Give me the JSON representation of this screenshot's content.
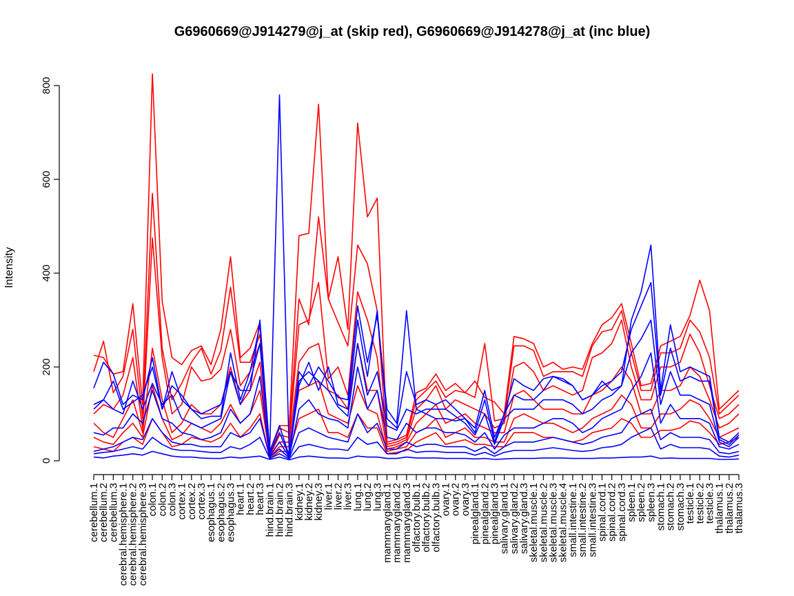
{
  "chart_data": {
    "type": "line",
    "title": "G6960669@J914279@j_at (skip red), G6960669@J914278@j_at (inc blue)",
    "ylabel": "Intensity",
    "ylim": [
      0,
      800
    ],
    "yticks": [
      0,
      200,
      400,
      600,
      800
    ],
    "grid": false,
    "legend": "none",
    "colors": {
      "skip": "#ff0000",
      "inc": "#0000ff"
    },
    "categories": [
      "cerebellum.1",
      "cerebellum.2",
      "cerebellum.3",
      "cerebral.hemisphere.1",
      "cerebral.hemisphere.2",
      "cerebral.hemisphere.3",
      "colon.1",
      "colon.2",
      "colon.3",
      "cortex.1",
      "cortex.2",
      "cortex.3",
      "esophagus.1",
      "esophagus.2",
      "esophagus.3",
      "heart.1",
      "heart.2",
      "heart.3",
      "hind.brain.1",
      "hind.brain.2",
      "hind.brain.3",
      "kidney.1",
      "kidney.2",
      "kidney.3",
      "liver.1",
      "liver.2",
      "liver.3",
      "lung.1",
      "lung.2",
      "lung.3",
      "mammarygland.1",
      "mammarygland.2",
      "mammarygland.3",
      "olfactory.bulb.1",
      "olfactory.bulb.2",
      "olfactory.bulb.3",
      "ovary.1",
      "ovary.2",
      "ovary.3",
      "pinealgland.1",
      "pinealgland.2",
      "pinealgland.3",
      "salivary.gland.1",
      "salivary.gland.2",
      "salivary.gland.3",
      "skeletal.muscle.1",
      "skeletal.muscle.2",
      "skeletal.muscle.3",
      "skeletal.muscle.4",
      "small.intestine.1",
      "small.intestine.2",
      "small.intestine.3",
      "spinal.cord.1",
      "spinal.cord.2",
      "spinal.cord.3",
      "spleen.1",
      "spleen.2",
      "spleen.3",
      "stomach.1",
      "stomach.2",
      "stomach.3",
      "testicle.1",
      "testicle.2",
      "testicle.3",
      "thalamus.1",
      "thalamus.2",
      "thalamus.3"
    ],
    "series": [
      {
        "group": "skip",
        "values": [
          225,
          220,
          185,
          190,
          335,
          120,
          825,
          340,
          220,
          205,
          235,
          245,
          205,
          280,
          435,
          220,
          240,
          295,
          10,
          75,
          75,
          480,
          485,
          760,
          345,
          435,
          280,
          720,
          520,
          560,
          40,
          45,
          55,
          145,
          155,
          185,
          150,
          165,
          145,
          170,
          135,
          125,
          100,
          265,
          260,
          250,
          200,
          210,
          195,
          200,
          195,
          250,
          290,
          305,
          335,
          250,
          160,
          165,
          245,
          255,
          265,
          310,
          385,
          320,
          110,
          130,
          150
        ]
      },
      {
        "group": "skip",
        "values": [
          190,
          255,
          145,
          180,
          280,
          90,
          570,
          240,
          130,
          165,
          210,
          240,
          185,
          235,
          370,
          210,
          210,
          270,
          15,
          70,
          60,
          345,
          290,
          520,
          345,
          295,
          245,
          460,
          420,
          320,
          35,
          40,
          50,
          130,
          150,
          170,
          135,
          150,
          145,
          135,
          250,
          85,
          90,
          245,
          245,
          235,
          180,
          190,
          190,
          190,
          180,
          245,
          275,
          280,
          320,
          230,
          150,
          150,
          230,
          230,
          240,
          300,
          275,
          220,
          100,
          120,
          140
        ]
      },
      {
        "group": "skip",
        "values": [
          100,
          120,
          110,
          140,
          220,
          70,
          475,
          220,
          100,
          120,
          200,
          170,
          175,
          195,
          280,
          160,
          190,
          250,
          10,
          55,
          50,
          290,
          300,
          380,
          175,
          200,
          140,
          360,
          300,
          220,
          30,
          35,
          45,
          110,
          130,
          160,
          110,
          130,
          120,
          110,
          100,
          70,
          80,
          200,
          210,
          190,
          150,
          160,
          150,
          140,
          150,
          220,
          230,
          250,
          300,
          200,
          130,
          130,
          200,
          200,
          210,
          270,
          230,
          160,
          90,
          100,
          120
        ]
      },
      {
        "group": "skip",
        "values": [
          80,
          60,
          50,
          90,
          130,
          60,
          240,
          130,
          60,
          80,
          120,
          100,
          100,
          120,
          200,
          120,
          150,
          210,
          10,
          40,
          40,
          210,
          240,
          250,
          150,
          140,
          110,
          250,
          150,
          150,
          25,
          30,
          40,
          80,
          100,
          120,
          80,
          90,
          100,
          80,
          70,
          60,
          60,
          140,
          150,
          130,
          110,
          110,
          110,
          100,
          100,
          140,
          150,
          170,
          200,
          170,
          100,
          100,
          150,
          150,
          160,
          200,
          180,
          130,
          70,
          80,
          100
        ]
      },
      {
        "group": "skip",
        "values": [
          50,
          40,
          35,
          60,
          80,
          50,
          160,
          90,
          45,
          55,
          80,
          70,
          60,
          80,
          120,
          80,
          100,
          150,
          8,
          30,
          30,
          150,
          160,
          170,
          100,
          90,
          80,
          160,
          110,
          100,
          20,
          25,
          30,
          60,
          70,
          90,
          50,
          60,
          70,
          50,
          50,
          40,
          40,
          90,
          100,
          90,
          80,
          80,
          70,
          60,
          70,
          90,
          100,
          110,
          140,
          120,
          70,
          70,
          100,
          100,
          110,
          130,
          120,
          90,
          50,
          60,
          70
        ]
      },
      {
        "group": "skip",
        "values": [
          30,
          25,
          20,
          40,
          50,
          35,
          90,
          60,
          30,
          35,
          50,
          45,
          40,
          50,
          80,
          50,
          70,
          100,
          5,
          20,
          20,
          90,
          100,
          110,
          60,
          60,
          50,
          100,
          70,
          70,
          15,
          18,
          22,
          40,
          50,
          60,
          35,
          40,
          45,
          35,
          35,
          30,
          30,
          60,
          60,
          60,
          50,
          50,
          45,
          40,
          45,
          60,
          65,
          70,
          90,
          80,
          50,
          50,
          65,
          65,
          70,
          85,
          80,
          60,
          35,
          40,
          50
        ]
      },
      {
        "group": "inc",
        "values": [
          155,
          210,
          185,
          120,
          140,
          130,
          220,
          110,
          190,
          130,
          110,
          100,
          110,
          120,
          190,
          150,
          150,
          300,
          20,
          780,
          15,
          190,
          160,
          200,
          170,
          135,
          130,
          330,
          210,
          310,
          110,
          80,
          320,
          110,
          100,
          90,
          90,
          85,
          90,
          70,
          150,
          50,
          100,
          175,
          160,
          150,
          175,
          180,
          170,
          160,
          130,
          140,
          170,
          150,
          160,
          300,
          360,
          460,
          150,
          290,
          190,
          200,
          190,
          180,
          50,
          40,
          60
        ]
      },
      {
        "group": "inc",
        "values": [
          120,
          130,
          170,
          110,
          125,
          140,
          200,
          110,
          160,
          140,
          110,
          90,
          95,
          95,
          230,
          130,
          190,
          290,
          20,
          75,
          10,
          160,
          210,
          150,
          200,
          120,
          110,
          300,
          180,
          320,
          90,
          70,
          190,
          120,
          130,
          120,
          130,
          110,
          90,
          60,
          130,
          40,
          100,
          140,
          130,
          130,
          150,
          180,
          175,
          160,
          130,
          140,
          160,
          170,
          190,
          280,
          330,
          380,
          140,
          240,
          170,
          180,
          170,
          170,
          45,
          35,
          55
        ]
      },
      {
        "group": "inc",
        "values": [
          110,
          130,
          110,
          100,
          170,
          110,
          165,
          120,
          140,
          90,
          80,
          70,
          80,
          90,
          190,
          120,
          170,
          250,
          15,
          60,
          10,
          170,
          190,
          170,
          150,
          115,
          95,
          250,
          140,
          190,
          75,
          65,
          110,
          100,
          110,
          110,
          110,
          95,
          80,
          55,
          100,
          35,
          90,
          110,
          110,
          110,
          130,
          130,
          130,
          120,
          100,
          110,
          130,
          140,
          160,
          230,
          260,
          300,
          120,
          190,
          140,
          140,
          130,
          120,
          40,
          30,
          50
        ]
      },
      {
        "group": "inc",
        "values": [
          60,
          55,
          70,
          70,
          100,
          80,
          150,
          90,
          80,
          60,
          55,
          45,
          50,
          60,
          110,
          80,
          100,
          180,
          10,
          40,
          8,
          110,
          130,
          100,
          90,
          85,
          70,
          200,
          110,
          150,
          50,
          45,
          80,
          60,
          70,
          70,
          60,
          60,
          55,
          40,
          60,
          25,
          55,
          70,
          70,
          70,
          80,
          90,
          90,
          80,
          60,
          70,
          90,
          100,
          110,
          150,
          180,
          230,
          80,
          120,
          90,
          90,
          90,
          80,
          30,
          25,
          35
        ]
      },
      {
        "group": "inc",
        "values": [
          20,
          25,
          30,
          40,
          50,
          45,
          90,
          60,
          40,
          35,
          35,
          30,
          30,
          30,
          60,
          50,
          60,
          90,
          8,
          25,
          6,
          60,
          70,
          60,
          50,
          45,
          40,
          100,
          60,
          80,
          25,
          25,
          40,
          30,
          35,
          35,
          30,
          30,
          30,
          20,
          30,
          15,
          30,
          40,
          40,
          40,
          45,
          50,
          45,
          40,
          35,
          40,
          50,
          55,
          60,
          90,
          100,
          110,
          45,
          60,
          50,
          50,
          50,
          45,
          18,
          15,
          20
        ]
      },
      {
        "group": "inc",
        "values": [
          15,
          18,
          20,
          25,
          30,
          25,
          50,
          35,
          25,
          22,
          22,
          20,
          18,
          18,
          30,
          25,
          35,
          50,
          5,
          15,
          4,
          30,
          35,
          30,
          25,
          25,
          22,
          50,
          35,
          40,
          15,
          15,
          25,
          18,
          20,
          20,
          18,
          18,
          18,
          12,
          18,
          10,
          18,
          22,
          22,
          22,
          25,
          28,
          25,
          22,
          20,
          22,
          28,
          30,
          35,
          50,
          60,
          70,
          25,
          35,
          28,
          28,
          28,
          25,
          10,
          8,
          12
        ]
      },
      {
        "group": "inc",
        "values": [
          8,
          6,
          10,
          12,
          15,
          12,
          20,
          15,
          10,
          8,
          8,
          6,
          5,
          5,
          8,
          6,
          8,
          10,
          3,
          8,
          2,
          8,
          10,
          8,
          6,
          6,
          5,
          10,
          8,
          8,
          5,
          5,
          8,
          6,
          6,
          6,
          5,
          5,
          5,
          4,
          5,
          3,
          4,
          5,
          5,
          5,
          6,
          6,
          6,
          5,
          5,
          5,
          6,
          6,
          7,
          8,
          8,
          10,
          5,
          6,
          5,
          5,
          5,
          5,
          3,
          3,
          4
        ]
      }
    ]
  }
}
